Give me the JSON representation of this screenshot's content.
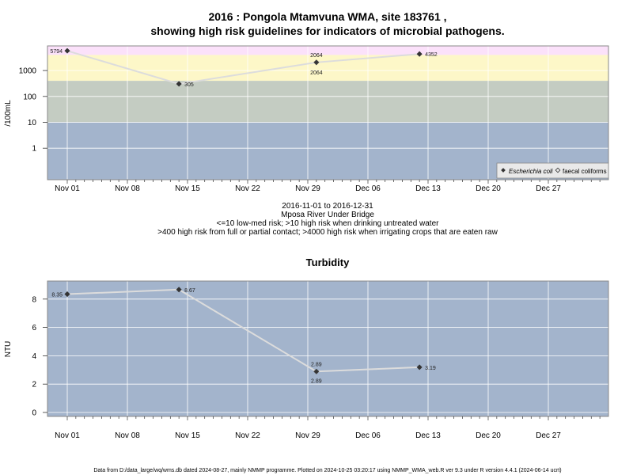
{
  "header": {
    "title_line1": "2016 : Pongola Mtamvuna WMA, site 183761 ,",
    "title_line2": "showing high risk guidelines for indicators of microbial pathogens."
  },
  "caption": {
    "line1": "2016-11-01 to 2016-12-31",
    "line2": "Mposa River Under Bridge",
    "line3": "<=10 low-med risk; >10 high risk when drinking untreated water",
    "line4": ">400 high risk from full or partial contact; >4000 high risk when irrigating crops that are eaten raw"
  },
  "footer": {
    "text": "Data from D:/data_large/wq/wms.db dated 2024-08-27, mainly NMMP programme. Plotted on 2024-10-25 03:20:17 using NMMP_WMA_web.R ver 9.3 under R version 4.4.1 (2024-06-14 ucrt)"
  },
  "colors": {
    "band_low": "#a3b4cc",
    "band_med": "#c4ccc2",
    "band_high": "#fdf7c8",
    "band_vhigh": "#fbe1fa",
    "panel_bg": "#a3b4cc",
    "grid": "#ffffff",
    "line": "#dcdcdc",
    "marker": "#333333"
  },
  "chart_data": [
    {
      "type": "line",
      "title": "",
      "ylabel": "/100mL",
      "yscale": "log",
      "x_ticks": [
        "Nov 01",
        "Nov 08",
        "Nov 15",
        "Nov 22",
        "Nov 29",
        "Dec 06",
        "Dec 13",
        "Dec 20",
        "Dec 27"
      ],
      "y_ticks": [
        "1",
        "10",
        "100",
        "1000"
      ],
      "risk_bands": [
        10,
        400,
        4000
      ],
      "legend": [
        "Escherichia coli",
        "faecal coliforms"
      ],
      "legend_position": "bottom-right",
      "grid": true,
      "series": [
        {
          "name": "Escherichia coli",
          "points": [
            {
              "date": "2016-11-01",
              "value": 5794,
              "label": "5794"
            },
            {
              "date": "2016-11-14",
              "value": 305,
              "label": "305"
            },
            {
              "date": "2016-11-30",
              "value": 2064,
              "label": "2064"
            },
            {
              "date": "2016-12-12",
              "value": 4352,
              "label": "4352"
            }
          ]
        },
        {
          "name": "faecal coliforms",
          "points": [
            {
              "date": "2016-11-30",
              "value": 2064,
              "label": "2064"
            }
          ]
        }
      ]
    },
    {
      "type": "line",
      "title": "Turbidity",
      "ylabel": "NTU",
      "x_ticks": [
        "Nov 01",
        "Nov 08",
        "Nov 15",
        "Nov 22",
        "Nov 29",
        "Dec 06",
        "Dec 13",
        "Dec 20",
        "Dec 27"
      ],
      "y_ticks": [
        "0",
        "2",
        "4",
        "6",
        "8"
      ],
      "ylim": [
        -0.3,
        9.2
      ],
      "grid": true,
      "series": [
        {
          "points": [
            {
              "date": "2016-11-01",
              "value": 8.35,
              "label": "8.35"
            },
            {
              "date": "2016-11-14",
              "value": 8.67,
              "label": "8.67"
            },
            {
              "date": "2016-11-30",
              "value": 2.89,
              "label": "2.89"
            },
            {
              "date": "2016-12-12",
              "value": 3.19,
              "label": "3.19"
            }
          ]
        },
        {
          "points": [
            {
              "date": "2016-11-30",
              "value": 2.89,
              "label": "2.89"
            }
          ]
        }
      ]
    }
  ]
}
